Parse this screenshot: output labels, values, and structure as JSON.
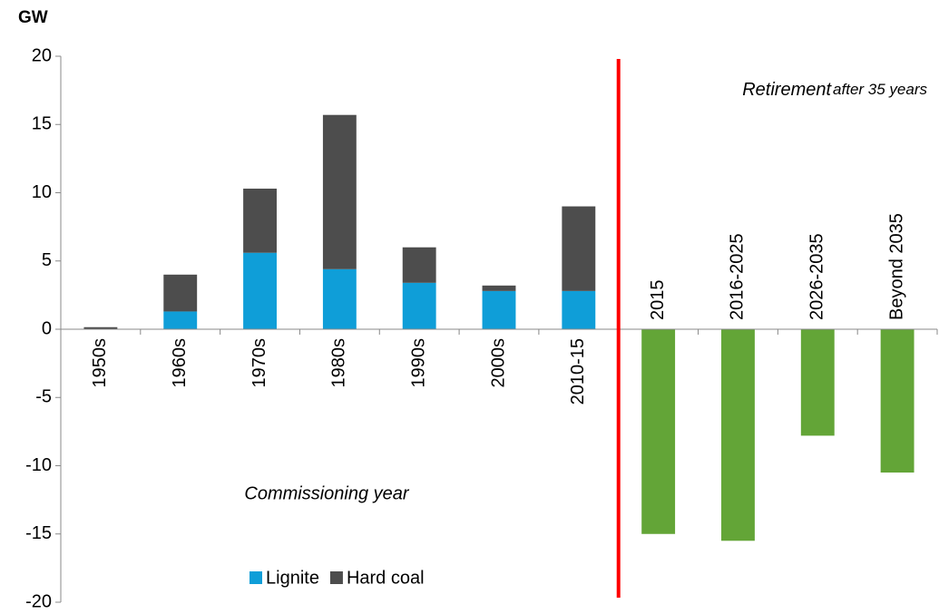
{
  "chart_data": {
    "type": "bar",
    "stacked": true,
    "y_label": "GW",
    "categories": [
      "1950s",
      "1960s",
      "1970s",
      "1980s",
      "1990s",
      "2000s",
      "2010-15",
      "2015",
      "2016-2025",
      "2026-2035",
      "Beyond 2035"
    ],
    "series": [
      {
        "name": "Lignite",
        "color": "#0f9ed8",
        "values": [
          0,
          1.3,
          5.6,
          4.4,
          3.4,
          2.8,
          2.8,
          null,
          null,
          null,
          null
        ]
      },
      {
        "name": "Hard coal",
        "color": "#4d4d4d",
        "values": [
          0.15,
          2.7,
          4.7,
          11.3,
          2.6,
          0.4,
          6.2,
          null,
          null,
          null,
          null
        ]
      },
      {
        "color": "#63a537",
        "values": [
          null,
          null,
          null,
          null,
          null,
          null,
          null,
          -15,
          -15.5,
          -7.8,
          -10.5
        ]
      }
    ],
    "annotations": [
      "Retirement",
      "after 35 years",
      "Commissioning year"
    ],
    "divider_color": "#ff0000",
    "ylim": [
      -20,
      20
    ],
    "yticks": [
      -20,
      -15,
      -10,
      -5,
      0,
      5,
      10,
      15,
      20
    ],
    "legend": "lower left"
  }
}
